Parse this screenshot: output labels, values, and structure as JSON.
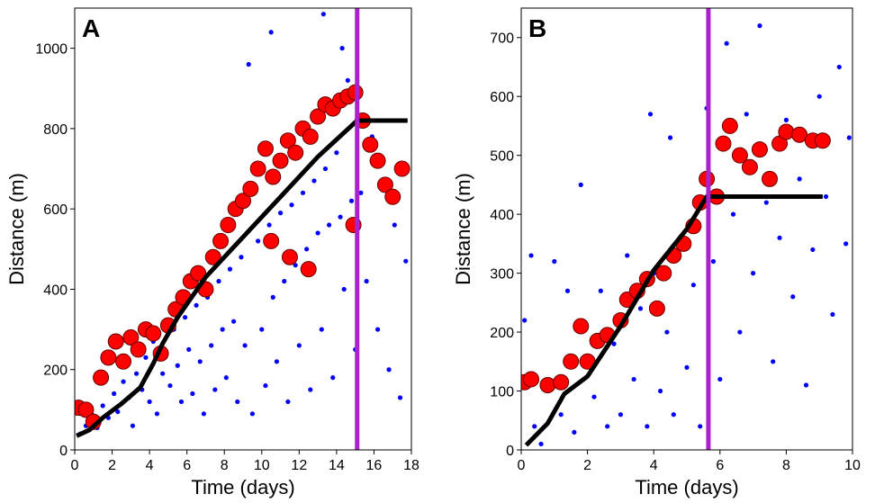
{
  "chart_data": [
    {
      "type": "scatter",
      "panel_label": "A",
      "xlabel": "Time (days)",
      "ylabel": "Distance (m)",
      "xlim": [
        0,
        18
      ],
      "ylim": [
        0,
        1100
      ],
      "xticks": [
        0,
        2,
        4,
        6,
        8,
        10,
        12,
        14,
        16,
        18
      ],
      "yticks": [
        0,
        200,
        400,
        600,
        800,
        1000
      ],
      "grid": false,
      "vline_x": 15.1,
      "colors": {
        "background": "#0000ff",
        "selected": "#ff0000",
        "fit": "#000000",
        "vline": "#aa22cc"
      },
      "background_points": [
        [
          0.3,
          40
        ],
        [
          0.6,
          60
        ],
        [
          0.9,
          90
        ],
        [
          1.2,
          55
        ],
        [
          1.5,
          110
        ],
        [
          1.8,
          80
        ],
        [
          2.1,
          140
        ],
        [
          2.3,
          95
        ],
        [
          2.6,
          170
        ],
        [
          2.9,
          130
        ],
        [
          3.1,
          60
        ],
        [
          3.3,
          190
        ],
        [
          3.6,
          150
        ],
        [
          3.8,
          230
        ],
        [
          4.0,
          120
        ],
        [
          4.2,
          270
        ],
        [
          4.4,
          90
        ],
        [
          4.7,
          190
        ],
        [
          4.9,
          240
        ],
        [
          5.1,
          160
        ],
        [
          5.3,
          300
        ],
        [
          5.5,
          210
        ],
        [
          5.7,
          120
        ],
        [
          5.9,
          330
        ],
        [
          6.1,
          250
        ],
        [
          6.3,
          140
        ],
        [
          6.5,
          360
        ],
        [
          6.7,
          220
        ],
        [
          6.9,
          90
        ],
        [
          7.1,
          380
        ],
        [
          7.3,
          260
        ],
        [
          7.5,
          150
        ],
        [
          7.7,
          420
        ],
        [
          7.9,
          300
        ],
        [
          8.1,
          180
        ],
        [
          8.3,
          450
        ],
        [
          8.5,
          320
        ],
        [
          8.7,
          120
        ],
        [
          8.9,
          480
        ],
        [
          9.1,
          260
        ],
        [
          9.3,
          960
        ],
        [
          9.5,
          90
        ],
        [
          9.8,
          520
        ],
        [
          10.0,
          300
        ],
        [
          10.2,
          160
        ],
        [
          10.4,
          560
        ],
        [
          10.6,
          380
        ],
        [
          10.8,
          220
        ],
        [
          11.0,
          590
        ],
        [
          11.2,
          420
        ],
        [
          11.4,
          120
        ],
        [
          11.6,
          610
        ],
        [
          11.8,
          460
        ],
        [
          12.0,
          260
        ],
        [
          12.2,
          640
        ],
        [
          12.4,
          500
        ],
        [
          12.6,
          150
        ],
        [
          12.8,
          670
        ],
        [
          13.0,
          540
        ],
        [
          13.2,
          300
        ],
        [
          13.4,
          700
        ],
        [
          13.6,
          560
        ],
        [
          13.8,
          180
        ],
        [
          14.0,
          740
        ],
        [
          14.2,
          580
        ],
        [
          14.4,
          400
        ],
        [
          14.6,
          920
        ],
        [
          14.8,
          620
        ],
        [
          15.0,
          250
        ],
        [
          15.3,
          640
        ],
        [
          15.6,
          420
        ],
        [
          15.9,
          780
        ],
        [
          16.2,
          300
        ],
        [
          16.5,
          650
        ],
        [
          16.8,
          200
        ],
        [
          17.1,
          560
        ],
        [
          17.4,
          130
        ],
        [
          17.7,
          470
        ],
        [
          10.5,
          1040
        ],
        [
          13.3,
          1085
        ],
        [
          14.3,
          1000
        ]
      ],
      "selected_points": [
        [
          0.2,
          105
        ],
        [
          0.6,
          100
        ],
        [
          1.0,
          70
        ],
        [
          1.4,
          180
        ],
        [
          1.8,
          230
        ],
        [
          2.2,
          270
        ],
        [
          2.6,
          220
        ],
        [
          3.0,
          280
        ],
        [
          3.4,
          250
        ],
        [
          3.8,
          300
        ],
        [
          4.2,
          290
        ],
        [
          4.6,
          240
        ],
        [
          5.0,
          310
        ],
        [
          5.4,
          350
        ],
        [
          5.8,
          380
        ],
        [
          6.2,
          420
        ],
        [
          6.6,
          440
        ],
        [
          7.0,
          400
        ],
        [
          7.4,
          480
        ],
        [
          7.8,
          520
        ],
        [
          8.2,
          560
        ],
        [
          8.6,
          600
        ],
        [
          9.0,
          620
        ],
        [
          9.4,
          650
        ],
        [
          9.8,
          700
        ],
        [
          10.2,
          750
        ],
        [
          10.6,
          680
        ],
        [
          11.0,
          720
        ],
        [
          11.4,
          770
        ],
        [
          11.8,
          740
        ],
        [
          12.2,
          800
        ],
        [
          12.6,
          780
        ],
        [
          13.0,
          830
        ],
        [
          13.4,
          860
        ],
        [
          13.8,
          850
        ],
        [
          14.2,
          870
        ],
        [
          14.6,
          880
        ],
        [
          15.0,
          890
        ],
        [
          15.4,
          820
        ],
        [
          15.8,
          760
        ],
        [
          16.2,
          720
        ],
        [
          16.6,
          660
        ],
        [
          17.0,
          630
        ],
        [
          17.5,
          700
        ],
        [
          14.9,
          560
        ],
        [
          12.5,
          450
        ],
        [
          11.5,
          480
        ],
        [
          10.5,
          520
        ]
      ],
      "fit_line": [
        [
          0.1,
          35
        ],
        [
          0.8,
          50
        ],
        [
          1.5,
          80
        ],
        [
          2.5,
          115
        ],
        [
          3.5,
          155
        ],
        [
          4.2,
          215
        ],
        [
          4.7,
          265
        ],
        [
          5.5,
          330
        ],
        [
          7.0,
          430
        ],
        [
          9.0,
          530
        ],
        [
          11.0,
          630
        ],
        [
          13.0,
          730
        ],
        [
          15.1,
          820
        ],
        [
          17.8,
          820
        ]
      ]
    },
    {
      "type": "scatter",
      "panel_label": "B",
      "xlabel": "Time (days)",
      "ylabel": "Distance (m)",
      "xlim": [
        0,
        10
      ],
      "ylim": [
        0,
        750
      ],
      "xticks": [
        0,
        2,
        4,
        6,
        8,
        10
      ],
      "yticks": [
        0,
        100,
        200,
        300,
        400,
        500,
        600,
        700
      ],
      "grid": false,
      "vline_x": 5.65,
      "colors": {
        "background": "#0000ff",
        "selected": "#ff0000",
        "fit": "#000000",
        "vline": "#aa22cc"
      },
      "background_points": [
        [
          0.1,
          220
        ],
        [
          0.3,
          330
        ],
        [
          0.4,
          40
        ],
        [
          0.6,
          10
        ],
        [
          0.8,
          100
        ],
        [
          1.0,
          320
        ],
        [
          1.2,
          60
        ],
        [
          1.4,
          270
        ],
        [
          1.6,
          30
        ],
        [
          1.8,
          450
        ],
        [
          2.0,
          150
        ],
        [
          2.2,
          90
        ],
        [
          2.4,
          270
        ],
        [
          2.6,
          40
        ],
        [
          2.8,
          180
        ],
        [
          3.0,
          60
        ],
        [
          3.2,
          330
        ],
        [
          3.4,
          120
        ],
        [
          3.6,
          240
        ],
        [
          3.8,
          40
        ],
        [
          4.0,
          300
        ],
        [
          4.2,
          100
        ],
        [
          4.4,
          200
        ],
        [
          4.6,
          60
        ],
        [
          4.8,
          360
        ],
        [
          5.0,
          140
        ],
        [
          5.2,
          280
        ],
        [
          5.4,
          40
        ],
        [
          5.6,
          580
        ],
        [
          5.8,
          320
        ],
        [
          6.0,
          120
        ],
        [
          6.2,
          690
        ],
        [
          6.4,
          400
        ],
        [
          6.6,
          200
        ],
        [
          6.8,
          570
        ],
        [
          7.0,
          300
        ],
        [
          7.2,
          720
        ],
        [
          7.4,
          420
        ],
        [
          7.6,
          150
        ],
        [
          7.8,
          360
        ],
        [
          8.0,
          560
        ],
        [
          8.2,
          260
        ],
        [
          8.4,
          460
        ],
        [
          8.6,
          110
        ],
        [
          8.8,
          340
        ],
        [
          9.0,
          600
        ],
        [
          9.2,
          430
        ],
        [
          9.4,
          230
        ],
        [
          9.6,
          650
        ],
        [
          9.8,
          350
        ],
        [
          9.9,
          530
        ],
        [
          3.9,
          570
        ],
        [
          4.5,
          530
        ]
      ],
      "selected_points": [
        [
          0.1,
          115
        ],
        [
          0.3,
          120
        ],
        [
          0.8,
          110
        ],
        [
          1.2,
          115
        ],
        [
          1.5,
          150
        ],
        [
          1.8,
          210
        ],
        [
          2.0,
          150
        ],
        [
          2.3,
          185
        ],
        [
          2.6,
          195
        ],
        [
          3.0,
          220
        ],
        [
          3.2,
          255
        ],
        [
          3.5,
          270
        ],
        [
          3.8,
          290
        ],
        [
          4.1,
          240
        ],
        [
          4.3,
          300
        ],
        [
          4.6,
          330
        ],
        [
          4.9,
          350
        ],
        [
          5.2,
          380
        ],
        [
          5.4,
          420
        ],
        [
          5.6,
          460
        ],
        [
          5.9,
          430
        ],
        [
          6.1,
          520
        ],
        [
          6.3,
          550
        ],
        [
          6.6,
          500
        ],
        [
          6.9,
          480
        ],
        [
          7.2,
          510
        ],
        [
          7.5,
          460
        ],
        [
          7.8,
          520
        ],
        [
          8.0,
          540
        ],
        [
          8.4,
          535
        ],
        [
          8.8,
          525
        ],
        [
          9.1,
          525
        ]
      ],
      "fit_line": [
        [
          0.15,
          8
        ],
        [
          0.8,
          45
        ],
        [
          1.3,
          95
        ],
        [
          2.0,
          125
        ],
        [
          3.0,
          210
        ],
        [
          4.0,
          305
        ],
        [
          5.0,
          375
        ],
        [
          5.6,
          430
        ],
        [
          9.1,
          430
        ]
      ]
    }
  ]
}
